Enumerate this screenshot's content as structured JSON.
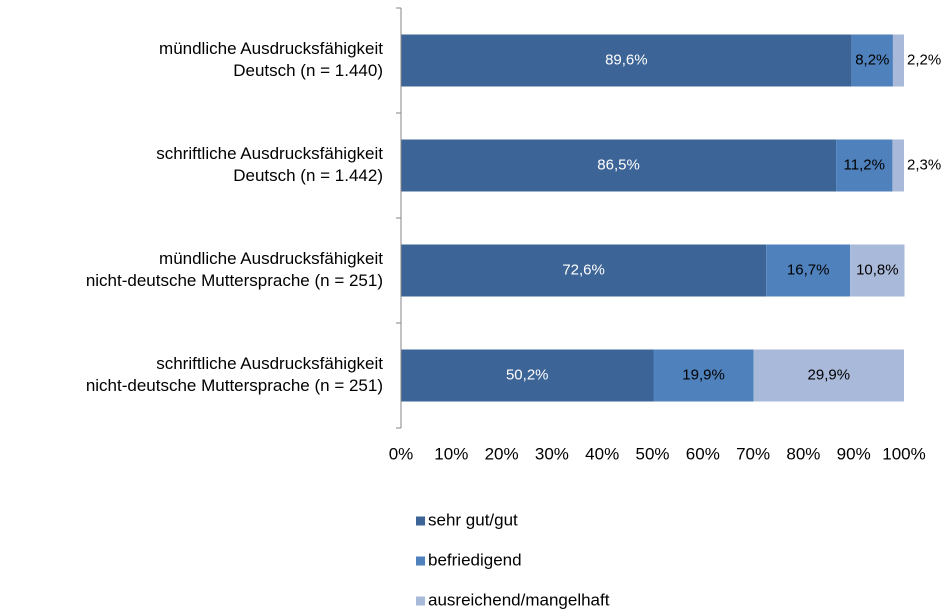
{
  "chart_data": {
    "type": "bar",
    "orientation": "horizontal",
    "stacked": true,
    "categories": [
      [
        "mündliche Ausdrucksfähigkeit",
        "Deutsch (n = 1.440)"
      ],
      [
        "schriftliche Ausdrucksfähigkeit",
        "Deutsch (n = 1.442)"
      ],
      [
        "mündliche Ausdrucksfähigkeit",
        "nicht-deutsche Muttersprache (n = 251)"
      ],
      [
        "schriftliche Ausdrucksfähigkeit",
        "nicht-deutsche Muttersprache (n = 251)"
      ]
    ],
    "series": [
      {
        "name": "sehr gut/gut",
        "color": "#3d6496",
        "values": [
          89.6,
          86.5,
          72.6,
          50.2
        ],
        "value_labels": [
          "89,6%",
          "86,5%",
          "72,6%",
          "50,2%"
        ]
      },
      {
        "name": "befriedigend",
        "color": "#4f81bd",
        "values": [
          8.2,
          11.2,
          16.7,
          19.9
        ],
        "value_labels": [
          "8,2%",
          "11,2%",
          "16,7%",
          "19,9%"
        ]
      },
      {
        "name": "ausreichend/mangelhaft",
        "color": "#a9b9d9",
        "values": [
          2.2,
          2.3,
          10.8,
          29.9
        ],
        "value_labels": [
          "2,2%",
          "2,3%",
          "10,8%",
          "29,9%"
        ]
      }
    ],
    "xlim": [
      0,
      100
    ],
    "xticks": [
      {
        "value": 0,
        "label": "0%"
      },
      {
        "value": 10,
        "label": "10%"
      },
      {
        "value": 20,
        "label": "20%"
      },
      {
        "value": 30,
        "label": "30%"
      },
      {
        "value": 40,
        "label": "40%"
      },
      {
        "value": 50,
        "label": "50%"
      },
      {
        "value": 60,
        "label": "60%"
      },
      {
        "value": 70,
        "label": "70%"
      },
      {
        "value": 80,
        "label": "80%"
      },
      {
        "value": 90,
        "label": "90%"
      },
      {
        "value": 100,
        "label": "100%"
      }
    ],
    "legend": "bottom"
  }
}
